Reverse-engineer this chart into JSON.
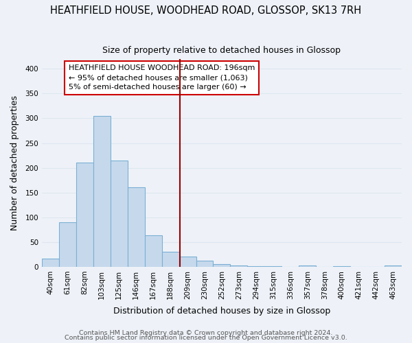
{
  "title": "HEATHFIELD HOUSE, WOODHEAD ROAD, GLOSSOP, SK13 7RH",
  "subtitle": "Size of property relative to detached houses in Glossop",
  "xlabel": "Distribution of detached houses by size in Glossop",
  "ylabel": "Number of detached properties",
  "bar_color": "#c6d9ec",
  "bar_edge_color": "#7bafd4",
  "bin_labels": [
    "40sqm",
    "61sqm",
    "82sqm",
    "103sqm",
    "125sqm",
    "146sqm",
    "167sqm",
    "188sqm",
    "209sqm",
    "230sqm",
    "252sqm",
    "273sqm",
    "294sqm",
    "315sqm",
    "336sqm",
    "357sqm",
    "378sqm",
    "400sqm",
    "421sqm",
    "442sqm",
    "463sqm"
  ],
  "bar_heights": [
    17,
    90,
    211,
    305,
    214,
    161,
    64,
    30,
    20,
    12,
    5,
    2,
    1,
    1,
    0,
    3,
    0,
    1,
    0,
    0,
    2
  ],
  "ylim": [
    0,
    420
  ],
  "yticks": [
    0,
    50,
    100,
    150,
    200,
    250,
    300,
    350,
    400
  ],
  "vline_x_bin": 7.55,
  "vline_color": "#990000",
  "annotation_text": "HEATHFIELD HOUSE WOODHEAD ROAD: 196sqm\n← 95% of detached houses are smaller (1,063)\n5% of semi-detached houses are larger (60) →",
  "footer1": "Contains HM Land Registry data © Crown copyright and database right 2024.",
  "footer2": "Contains public sector information licensed under the Open Government Licence v3.0.",
  "background_color": "#eef2f8",
  "grid_color": "#dde6f0",
  "title_fontsize": 10.5,
  "subtitle_fontsize": 9,
  "axis_label_fontsize": 9,
  "tick_fontsize": 7.5,
  "annotation_fontsize": 8,
  "footer_fontsize": 6.8
}
